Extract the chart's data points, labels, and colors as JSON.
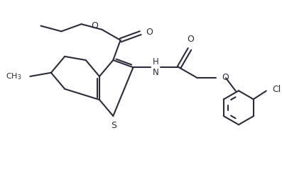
{
  "background_color": "#ffffff",
  "line_color": "#2b2b3b",
  "line_width": 1.5,
  "figsize": [
    3.97,
    2.63
  ],
  "dpi": 100,
  "xlim": [
    0.0,
    3.97
  ],
  "ylim": [
    0.0,
    2.63
  ]
}
